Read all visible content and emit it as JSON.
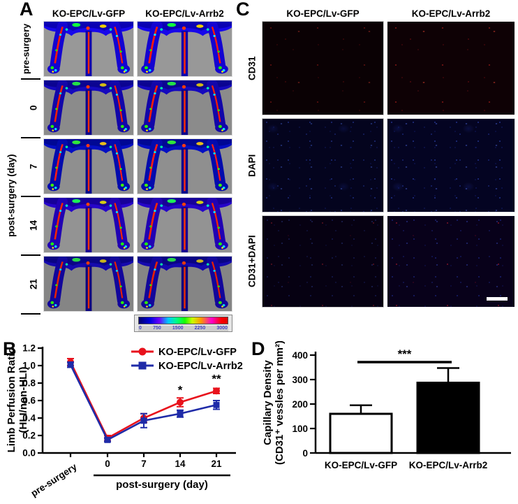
{
  "figure": {
    "panelA": {
      "label": "A",
      "col1": "KO-EPC/Lv-GFP",
      "col2": "KO-EPC/Lv-Arrb2",
      "row_pre": "pre-surgery",
      "rows": [
        "0",
        "7",
        "14",
        "21"
      ],
      "rows_axis": "post-surgery (day)",
      "scale_ticks": [
        "0",
        "750",
        "1500",
        "2250",
        "3000"
      ]
    },
    "panelB": {
      "label": "B"
    },
    "panelC": {
      "label": "C",
      "col1": "KO-EPC/Lv-GFP",
      "col2": "KO-EPC/Lv-Arrb2",
      "rows": [
        "CD31",
        "DAPI",
        "CD31+DAPI"
      ]
    },
    "panelD": {
      "label": "D"
    }
  },
  "chart_data": [
    {
      "id": "limb-perfusion-ratio",
      "type": "line",
      "title": "",
      "x_categories": [
        "pre-surgery",
        "0",
        "7",
        "14",
        "21"
      ],
      "xlabel": "post-surgery (day)",
      "ylabel_lines": [
        "Limb Perfusion Ratio",
        "(HLI/non-HLI)"
      ],
      "ylim": [
        0,
        1.2
      ],
      "yticks": [
        "0.0",
        "0.2",
        "0.4",
        "0.6",
        "0.8",
        "1.0",
        "1.2"
      ],
      "grid": false,
      "legend_position": "top-right",
      "series": [
        {
          "name": "KO-EPC/Lv-GFP",
          "color": "#e8121c",
          "marker": "circle",
          "values": [
            1.04,
            0.17,
            0.4,
            0.58,
            0.71
          ],
          "errors": [
            0.04,
            0.03,
            0.05,
            0.05,
            0.03
          ]
        },
        {
          "name": "KO-EPC/Lv-Arrb2",
          "color": "#1f2ba8",
          "marker": "square",
          "values": [
            1.01,
            0.15,
            0.37,
            0.45,
            0.55
          ],
          "errors": [
            0.03,
            0.02,
            0.08,
            0.04,
            0.05
          ]
        }
      ],
      "annotations": [
        {
          "x_index": 3,
          "text": "*"
        },
        {
          "x_index": 4,
          "text": "**"
        }
      ]
    },
    {
      "id": "capillary-density",
      "type": "bar",
      "title": "",
      "categories": [
        "KO-EPC/Lv-GFP",
        "KO-EPC/Lv-Arrb2"
      ],
      "values": [
        160,
        287
      ],
      "errors": [
        35,
        60
      ],
      "bar_fills": [
        "#ffffff",
        "#000000"
      ],
      "ylabel_lines": [
        "Capillary Density",
        "(CD31⁺ vessles per mm²)"
      ],
      "ylim": [
        0,
        400
      ],
      "yticks": [
        "0",
        "100",
        "200",
        "300",
        "400"
      ],
      "grid": false,
      "significance": "***"
    }
  ]
}
